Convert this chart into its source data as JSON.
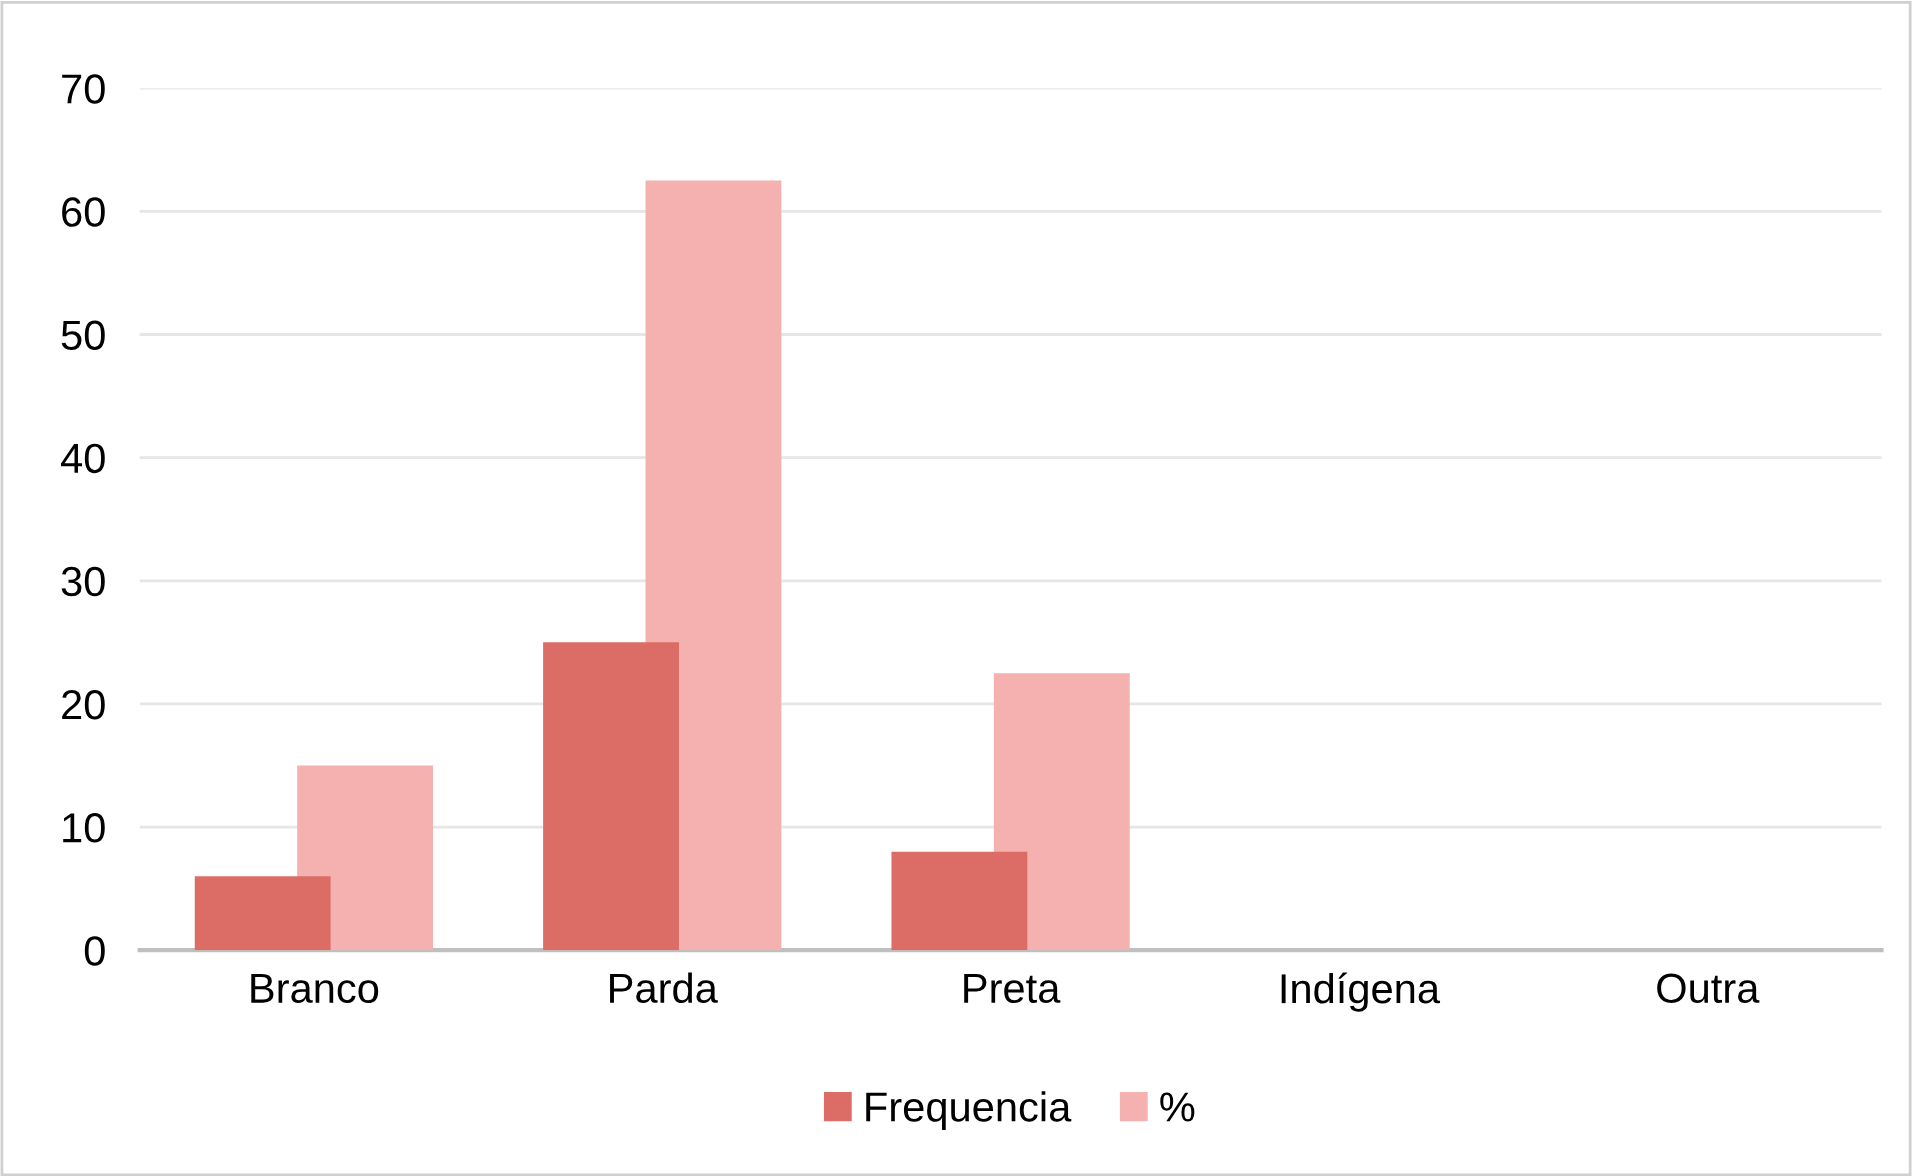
{
  "chart_data": {
    "type": "bar",
    "categories": [
      "Branco",
      "Parda",
      "Preta",
      "Indígena",
      "Outra"
    ],
    "series": [
      {
        "name": "Frequencia",
        "color": "#dc6d66",
        "values": [
          6,
          25,
          8,
          0,
          0
        ]
      },
      {
        "name": "%",
        "color": "#f4b1af",
        "values": [
          15,
          62.5,
          22.5,
          0,
          0
        ]
      }
    ],
    "ylim": [
      0,
      70
    ],
    "yticks": [
      0,
      10,
      20,
      30,
      40,
      50,
      60,
      70
    ],
    "grid": "y",
    "legend": "bottom"
  }
}
